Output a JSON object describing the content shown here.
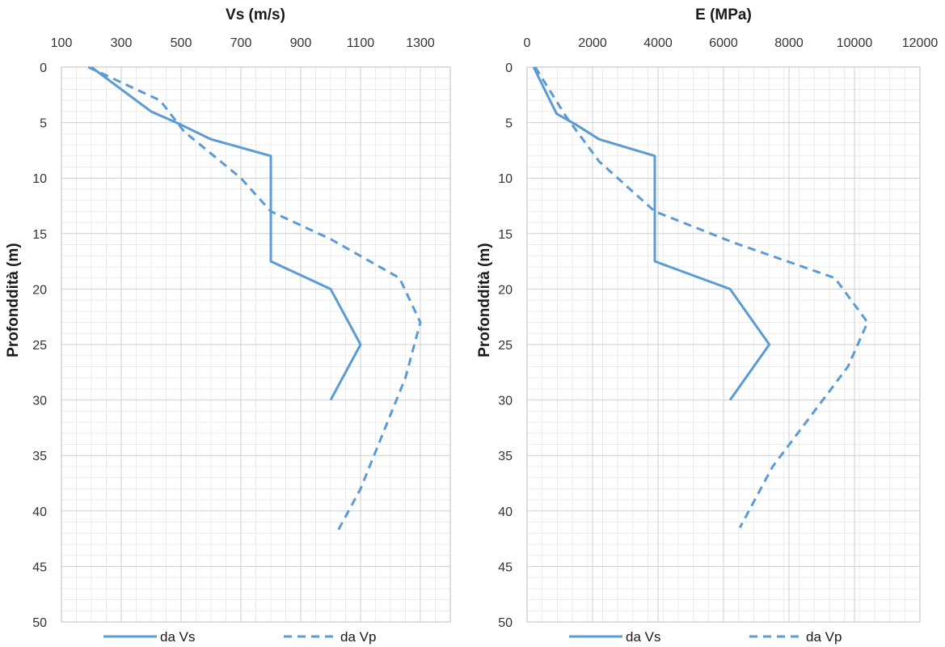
{
  "chart_data": [
    {
      "type": "line",
      "title": "Vs (m/s)",
      "xlabel": "Vs (m/s)",
      "ylabel": "Profonddità (m)",
      "xlim": [
        100,
        1400
      ],
      "ylim": [
        0,
        50
      ],
      "y_inverted": true,
      "x_axis_position": "top",
      "x_ticks": [
        100,
        300,
        500,
        700,
        900,
        1100,
        1300
      ],
      "y_ticks": [
        0,
        5,
        10,
        15,
        20,
        25,
        30,
        35,
        40,
        45,
        50
      ],
      "grid": true,
      "legend_position": "bottom",
      "series": [
        {
          "name": "da Vs",
          "style": "solid",
          "color": "#5b9bd5",
          "points": [
            [
              200,
              0
            ],
            [
              400,
              4
            ],
            [
              500,
              5.2
            ],
            [
              600,
              6.5
            ],
            [
              800,
              8
            ],
            [
              800,
              17.5
            ],
            [
              1000,
              20
            ],
            [
              1100,
              25
            ],
            [
              1000,
              30
            ]
          ]
        },
        {
          "name": "da Vp",
          "style": "dashed",
          "color": "#5b9bd5",
          "points": [
            [
              190,
              0
            ],
            [
              430,
              3
            ],
            [
              510,
              5.8
            ],
            [
              700,
              10
            ],
            [
              800,
              13
            ],
            [
              1000,
              15.5
            ],
            [
              1230,
              19
            ],
            [
              1300,
              23
            ],
            [
              1250,
              28
            ],
            [
              1100,
              38
            ],
            [
              1020,
              42
            ]
          ]
        }
      ]
    },
    {
      "type": "line",
      "title": "E (MPa)",
      "xlabel": "E (MPa)",
      "ylabel": "Profonddità (m)",
      "xlim": [
        0,
        12000
      ],
      "ylim": [
        0,
        50
      ],
      "y_inverted": true,
      "x_axis_position": "top",
      "x_ticks": [
        0,
        2000,
        4000,
        6000,
        8000,
        10000,
        12000
      ],
      "y_ticks": [
        0,
        5,
        10,
        15,
        20,
        25,
        30,
        35,
        40,
        45,
        50
      ],
      "grid": true,
      "legend_position": "bottom",
      "series": [
        {
          "name": "da Vs",
          "style": "solid",
          "color": "#5b9bd5",
          "points": [
            [
              200,
              0
            ],
            [
              900,
              4.2
            ],
            [
              1500,
              5.2
            ],
            [
              2200,
              6.5
            ],
            [
              3900,
              8
            ],
            [
              3900,
              17.5
            ],
            [
              6200,
              20
            ],
            [
              7400,
              25
            ],
            [
              6200,
              30
            ]
          ]
        },
        {
          "name": "da Vp",
          "style": "dashed",
          "color": "#5b9bd5",
          "points": [
            [
              250,
              0
            ],
            [
              1200,
              4.5
            ],
            [
              2200,
              8.5
            ],
            [
              3900,
              13
            ],
            [
              6300,
              15.8
            ],
            [
              9400,
              19
            ],
            [
              10400,
              23
            ],
            [
              9800,
              27
            ],
            [
              7500,
              36
            ],
            [
              6500,
              41.5
            ]
          ]
        }
      ]
    }
  ]
}
